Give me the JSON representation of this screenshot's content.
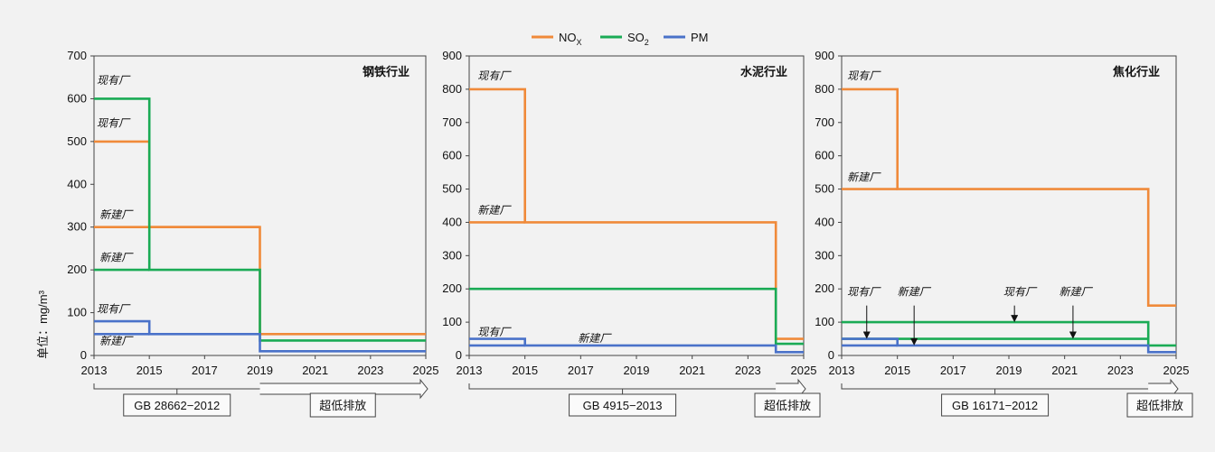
{
  "legend": {
    "items": [
      {
        "label": "NOX",
        "color": "#f08a3a"
      },
      {
        "label": "SO2",
        "color": "#1aab55"
      },
      {
        "label": "PM",
        "color": "#4a72c9"
      }
    ]
  },
  "ylabel": "单位：mg/m³",
  "chart_data": [
    {
      "type": "line",
      "title": "钢铁行业",
      "ylim": [
        0,
        700
      ],
      "yticks": [
        0,
        100,
        200,
        300,
        400,
        500,
        600,
        700
      ],
      "xlim": [
        2013,
        2025
      ],
      "xticks": [
        2013,
        2015,
        2017,
        2019,
        2021,
        2023,
        2025
      ],
      "series": [
        {
          "name": "NOX",
          "color": "#f08a3a",
          "segments": [
            {
              "x": [
                2013,
                2015,
                2015,
                2019,
                2019,
                2025
              ],
              "y": [
                500,
                500,
                300,
                300,
                50,
                50
              ]
            },
            {
              "x": [
                2013,
                2019
              ],
              "y": [
                300,
                300
              ]
            }
          ]
        },
        {
          "name": "SO2",
          "color": "#1aab55",
          "segments": [
            {
              "x": [
                2013,
                2015,
                2015,
                2019,
                2019,
                2025
              ],
              "y": [
                600,
                600,
                200,
                200,
                35,
                35
              ]
            },
            {
              "x": [
                2013,
                2015
              ],
              "y": [
                200,
                200
              ]
            }
          ]
        },
        {
          "name": "PM",
          "color": "#4a72c9",
          "segments": [
            {
              "x": [
                2013,
                2015,
                2015,
                2019,
                2019,
                2025
              ],
              "y": [
                80,
                80,
                50,
                50,
                10,
                10
              ]
            },
            {
              "x": [
                2013,
                2015
              ],
              "y": [
                50,
                50
              ]
            }
          ]
        }
      ],
      "annotations": [
        {
          "text": "现有厂",
          "x": 2013.1,
          "y": 635
        },
        {
          "text": "现有厂",
          "x": 2013.1,
          "y": 535
        },
        {
          "text": "新建厂",
          "x": 2013.2,
          "y": 320
        },
        {
          "text": "新建厂",
          "x": 2013.2,
          "y": 220
        },
        {
          "text": "现有厂",
          "x": 2013.1,
          "y": 100
        },
        {
          "text": "新建厂",
          "x": 2013.2,
          "y": 25
        }
      ],
      "arrows": [],
      "bottom": {
        "standard": "GB 28662−2012",
        "ultra": "超低排放",
        "split": 2019
      }
    },
    {
      "type": "line",
      "title": "水泥行业",
      "ylim": [
        0,
        900
      ],
      "yticks": [
        0,
        100,
        200,
        300,
        400,
        500,
        600,
        700,
        800,
        900
      ],
      "xlim": [
        2013,
        2025
      ],
      "xticks": [
        2013,
        2015,
        2017,
        2019,
        2021,
        2023,
        2025
      ],
      "series": [
        {
          "name": "NOX",
          "color": "#f08a3a",
          "segments": [
            {
              "x": [
                2013,
                2015,
                2015,
                2024,
                2024,
                2025
              ],
              "y": [
                800,
                800,
                400,
                400,
                50,
                50
              ]
            },
            {
              "x": [
                2013,
                2015
              ],
              "y": [
                400,
                400
              ]
            }
          ]
        },
        {
          "name": "SO2",
          "color": "#1aab55",
          "segments": [
            {
              "x": [
                2013,
                2024,
                2024,
                2025
              ],
              "y": [
                200,
                200,
                35,
                35
              ]
            }
          ]
        },
        {
          "name": "PM",
          "color": "#4a72c9",
          "segments": [
            {
              "x": [
                2013,
                2015,
                2015,
                2024,
                2024,
                2025
              ],
              "y": [
                50,
                50,
                30,
                30,
                10,
                10
              ]
            },
            {
              "x": [
                2013,
                2015
              ],
              "y": [
                30,
                30
              ]
            }
          ]
        }
      ],
      "annotations": [
        {
          "text": "现有厂",
          "x": 2013.3,
          "y": 830
        },
        {
          "text": "新建厂",
          "x": 2013.3,
          "y": 425
        },
        {
          "text": "现有厂",
          "x": 2013.3,
          "y": 60
        },
        {
          "text": "新建厂",
          "x": 2016.9,
          "y": 40
        }
      ],
      "arrows": [],
      "bottom": {
        "standard": "GB 4915−2013",
        "ultra": "超低排放",
        "split": 2024
      }
    },
    {
      "type": "line",
      "title": "焦化行业",
      "ylim": [
        0,
        900
      ],
      "yticks": [
        0,
        100,
        200,
        300,
        400,
        500,
        600,
        700,
        800,
        900
      ],
      "xlim": [
        2013,
        2025
      ],
      "xticks": [
        2013,
        2015,
        2017,
        2019,
        2021,
        2023,
        2025
      ],
      "series": [
        {
          "name": "NOX",
          "color": "#f08a3a",
          "segments": [
            {
              "x": [
                2013,
                2015,
                2015,
                2024,
                2024,
                2025
              ],
              "y": [
                800,
                800,
                500,
                500,
                150,
                150
              ]
            },
            {
              "x": [
                2013,
                2015
              ],
              "y": [
                500,
                500
              ]
            }
          ]
        },
        {
          "name": "SO2",
          "color": "#1aab55",
          "segments": [
            {
              "x": [
                2013,
                2024,
                2024,
                2025
              ],
              "y": [
                100,
                100,
                30,
                30
              ]
            },
            {
              "x": [
                2013,
                2024
              ],
              "y": [
                50,
                50
              ]
            }
          ]
        },
        {
          "name": "PM",
          "color": "#4a72c9",
          "segments": [
            {
              "x": [
                2013,
                2015,
                2015,
                2024,
                2024,
                2025
              ],
              "y": [
                50,
                50,
                30,
                30,
                10,
                10
              ]
            },
            {
              "x": [
                2013,
                2015
              ],
              "y": [
                30,
                30
              ]
            }
          ]
        }
      ],
      "annotations": [
        {
          "text": "现有厂",
          "x": 2013.2,
          "y": 830
        },
        {
          "text": "新建厂",
          "x": 2013.2,
          "y": 525
        },
        {
          "text": "现有厂",
          "x": 2013.2,
          "y": 180
        },
        {
          "text": "新建厂",
          "x": 2015.0,
          "y": 180
        },
        {
          "text": "现有厂",
          "x": 2018.8,
          "y": 180
        },
        {
          "text": "新建厂",
          "x": 2020.8,
          "y": 180
        }
      ],
      "arrows": [
        {
          "x": 2013.9,
          "y_from": 150,
          "y_to": 50
        },
        {
          "x": 2015.6,
          "y_from": 150,
          "y_to": 30
        },
        {
          "x": 2019.2,
          "y_from": 150,
          "y_to": 100
        },
        {
          "x": 2021.3,
          "y_from": 150,
          "y_to": 50
        }
      ],
      "bottom": {
        "standard": "GB 16171−2012",
        "ultra": "超低排放",
        "split": 2024
      }
    }
  ]
}
